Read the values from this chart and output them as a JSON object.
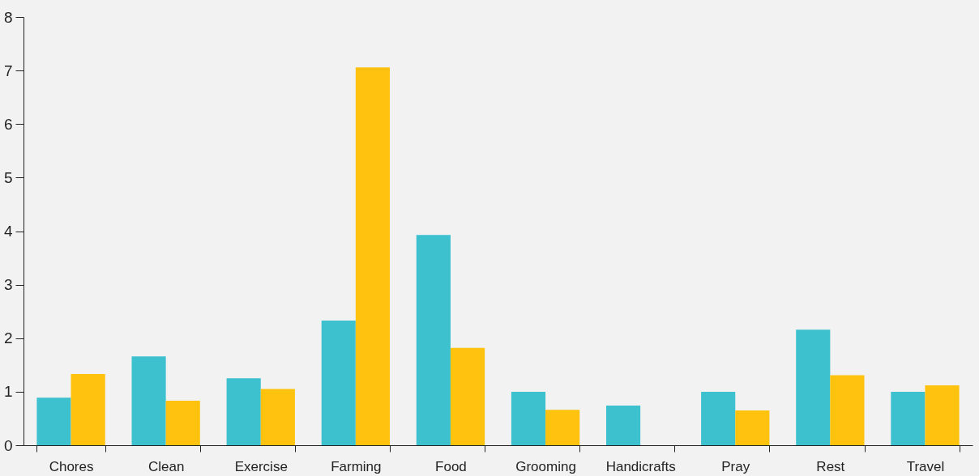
{
  "chart_data": {
    "type": "bar",
    "categories": [
      "Chores",
      "Clean",
      "Exercise",
      "Farming",
      "Food",
      "Grooming",
      "Handicrafts",
      "Pray",
      "Rest",
      "Travel"
    ],
    "series": [
      {
        "color": "#3ec1cf",
        "values": [
          0.89,
          1.66,
          1.25,
          2.33,
          3.93,
          1.0,
          0.74,
          1.0,
          2.16,
          1.0
        ]
      },
      {
        "color": "#ffc20e",
        "values": [
          1.33,
          0.83,
          1.05,
          7.06,
          1.82,
          0.66,
          0,
          0.65,
          1.31,
          1.12
        ]
      }
    ],
    "ylim": [
      0,
      8
    ],
    "yticks": [
      0,
      1,
      2,
      3,
      4,
      5,
      6,
      7,
      8
    ],
    "grid": false,
    "legend": false
  }
}
